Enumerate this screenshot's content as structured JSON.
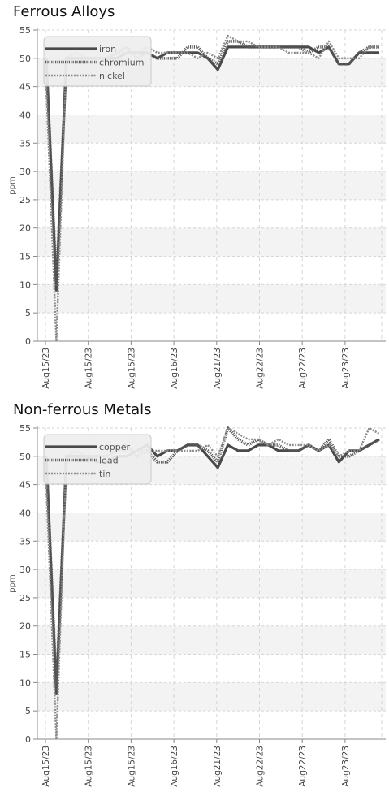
{
  "charts": [
    {
      "title": "Ferrous Alloys",
      "ylabel": "ppm"
    },
    {
      "title": "Non-ferrous Metals",
      "ylabel": "ppm"
    }
  ],
  "chart_data": [
    {
      "type": "line",
      "title": "Ferrous Alloys",
      "xlabel": "",
      "ylabel": "ppm",
      "ylim": [
        0,
        55
      ],
      "yticks": [
        0,
        5,
        10,
        15,
        20,
        25,
        30,
        35,
        40,
        45,
        50,
        55
      ],
      "xtick_labels": [
        "Aug15/23",
        "Aug15/23",
        "Aug15/23",
        "Aug16/23",
        "Aug21/23",
        "Aug22/23",
        "Aug22/23",
        "Aug23/23"
      ],
      "grid": true,
      "legend_position": "top-left",
      "series": [
        {
          "name": "iron",
          "values": [
            50,
            9,
            50,
            50,
            50,
            50,
            50,
            50,
            51,
            51,
            51,
            50,
            51,
            51,
            51,
            51,
            50,
            48,
            52,
            52,
            52,
            52,
            52,
            52,
            52,
            52,
            52,
            51,
            52,
            49,
            49,
            51,
            51,
            51
          ]
        },
        {
          "name": "chromium",
          "values": [
            50,
            10,
            50,
            50,
            50,
            50,
            50,
            51,
            52,
            50,
            51,
            50,
            50,
            50,
            52,
            52,
            50,
            49,
            53,
            53,
            52,
            52,
            52,
            52,
            52,
            52,
            51,
            52,
            52,
            49,
            49,
            51,
            52,
            52
          ]
        },
        {
          "name": "nickel",
          "values": [
            45,
            0,
            50,
            51,
            50,
            50,
            50,
            51,
            51,
            51,
            52,
            51,
            51,
            51,
            51,
            50,
            51,
            50,
            54,
            53,
            53,
            52,
            52,
            52,
            51,
            51,
            51,
            50,
            53,
            50,
            50,
            50,
            52,
            52
          ]
        }
      ]
    },
    {
      "type": "line",
      "title": "Non-ferrous Metals",
      "xlabel": "",
      "ylabel": "ppm",
      "ylim": [
        0,
        55
      ],
      "yticks": [
        0,
        5,
        10,
        15,
        20,
        25,
        30,
        35,
        40,
        45,
        50,
        55
      ],
      "xtick_labels": [
        "Aug15/23",
        "Aug15/23",
        "Aug15/23",
        "Aug16/23",
        "Aug21/23",
        "Aug22/23",
        "Aug22/23",
        "Aug23/23"
      ],
      "grid": true,
      "legend_position": "top-left",
      "series": [
        {
          "name": "copper",
          "values": [
            50,
            8,
            50,
            50,
            50,
            49,
            49,
            50,
            50,
            51,
            52,
            50,
            51,
            51,
            52,
            52,
            50,
            48,
            52,
            51,
            51,
            52,
            52,
            51,
            51,
            51,
            52,
            51,
            52,
            49,
            51,
            51,
            52,
            53
          ]
        },
        {
          "name": "lead",
          "values": [
            50,
            9,
            50,
            50,
            50,
            50,
            50,
            51,
            52,
            50,
            51,
            49,
            49,
            51,
            52,
            52,
            51,
            49,
            55,
            53,
            52,
            53,
            52,
            52,
            51,
            51,
            52,
            51,
            53,
            50,
            50,
            51,
            52,
            53
          ]
        },
        {
          "name": "tin",
          "values": [
            45,
            0,
            50,
            51,
            50,
            50,
            50,
            51,
            51,
            51,
            51,
            51,
            51,
            51,
            51,
            51,
            52,
            50,
            55,
            54,
            53,
            53,
            52,
            53,
            52,
            52,
            52,
            51,
            52,
            50,
            51,
            51,
            55,
            54
          ]
        }
      ]
    }
  ]
}
